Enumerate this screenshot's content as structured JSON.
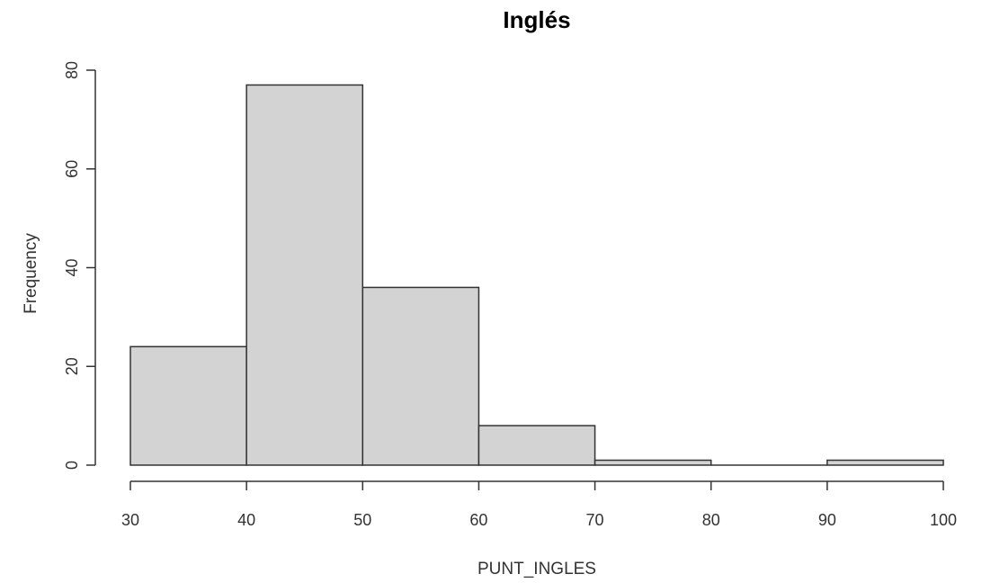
{
  "chart_data": {
    "type": "bar",
    "title": "Inglés",
    "xlabel": "PUNT_INGLES",
    "ylabel": "Frequency",
    "bins": [
      {
        "from": 30,
        "to": 40,
        "count": 24
      },
      {
        "from": 40,
        "to": 50,
        "count": 77
      },
      {
        "from": 50,
        "to": 60,
        "count": 36
      },
      {
        "from": 60,
        "to": 70,
        "count": 8
      },
      {
        "from": 70,
        "to": 80,
        "count": 1
      },
      {
        "from": 80,
        "to": 90,
        "count": 0
      },
      {
        "from": 90,
        "to": 100,
        "count": 1
      }
    ],
    "xlim": [
      30,
      100
    ],
    "ylim": [
      0,
      80
    ],
    "x_ticks": [
      30,
      40,
      50,
      60,
      70,
      80,
      90,
      100
    ],
    "y_ticks": [
      0,
      20,
      40,
      60,
      80
    ],
    "bar_color": "#d3d3d3",
    "edge_color": "#333333",
    "grid": false
  }
}
